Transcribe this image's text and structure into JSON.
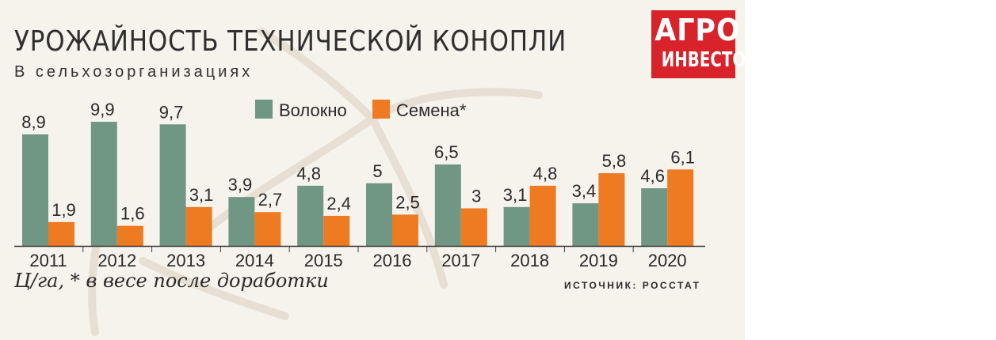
{
  "header": {
    "title": "УРОЖАЙНОСТЬ ТЕХНИЧЕСКОЙ КОНОПЛИ",
    "subtitle": "В сельхозорганизациях"
  },
  "logo": {
    "line1": "АГРО",
    "line2": "ИНВЕСТОР"
  },
  "footer": {
    "footnote": "Ц/га, * в весе после доработки",
    "source": "ИСТОЧНИК: РОССТАТ"
  },
  "colors": {
    "fiber": "#6f9784",
    "seeds": "#ee7a22",
    "text": "#2a2a2a",
    "logo": "#d8232a"
  },
  "chart_data": {
    "type": "bar",
    "title": "УРОЖАЙНОСТЬ ТЕХНИЧЕСКОЙ КОНОПЛИ",
    "subtitle": "В сельхозорганизациях",
    "ylabel": "Ц/га",
    "categories": [
      "2011",
      "2012",
      "2013",
      "2014",
      "2015",
      "2016",
      "2017",
      "2018",
      "2019",
      "2020"
    ],
    "series": [
      {
        "name": "Волокно",
        "values": [
          8.9,
          9.9,
          9.7,
          3.9,
          4.8,
          5,
          6.5,
          3.1,
          3.4,
          4.6
        ],
        "labels": [
          "8,9",
          "9,9",
          "9,7",
          "3,9",
          "4,8",
          "5",
          "6,5",
          "3,1",
          "3,4",
          "4,6"
        ],
        "color": "#6f9784"
      },
      {
        "name": "Семена*",
        "values": [
          1.9,
          1.6,
          3.1,
          2.7,
          2.4,
          2.5,
          3,
          4.8,
          5.8,
          6.1
        ],
        "labels": [
          "1,9",
          "1,6",
          "3,1",
          "2,7",
          "2,4",
          "2,5",
          "3",
          "4,8",
          "5,8",
          "6,1"
        ],
        "color": "#ee7a22"
      }
    ],
    "ylim": [
      0,
      10
    ],
    "grid": false,
    "legend": "top-center"
  }
}
